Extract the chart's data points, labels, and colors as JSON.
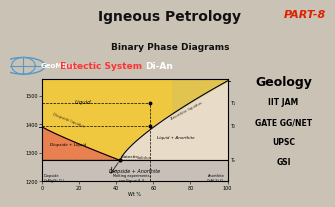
{
  "title": "Igneous Petrology",
  "part": "PART-8",
  "subtitle": "Binary Phase Diagrams",
  "highlight_red": "Eutectic System ",
  "highlight_white": "Di-An",
  "brand": "GeoMind",
  "right_text": [
    "Geology",
    "IIT JAM",
    "GATE GG/NET",
    "UPSC",
    "GSI"
  ],
  "bg_color": "#c9c2b5",
  "diagram_bg": "#f7f2eb",
  "xlim": [
    0,
    100
  ],
  "ylim": [
    1200,
    1560
  ],
  "yticks": [
    1200,
    1300,
    1400,
    1500
  ],
  "xticks": [
    0,
    20,
    40,
    60,
    80,
    100
  ],
  "eutectic_x": 42,
  "eutectic_y": 1274,
  "Di_melt_T": 1392,
  "An_melt_T": 1553,
  "solidus_y": 1274,
  "t1_x": 58,
  "t1_y": 1475,
  "t2_x": 58,
  "t2_y": 1395,
  "t3_y": 1274,
  "region_liquid_color": "#f0c840",
  "region_Di_liquid_color": "#e88050",
  "region_Di_anorthite_color": "#c8c0b8",
  "region_liquid_anorthite_color": "#e8dcc8",
  "anorthite_liquidus_top_color": "#d4c060"
}
